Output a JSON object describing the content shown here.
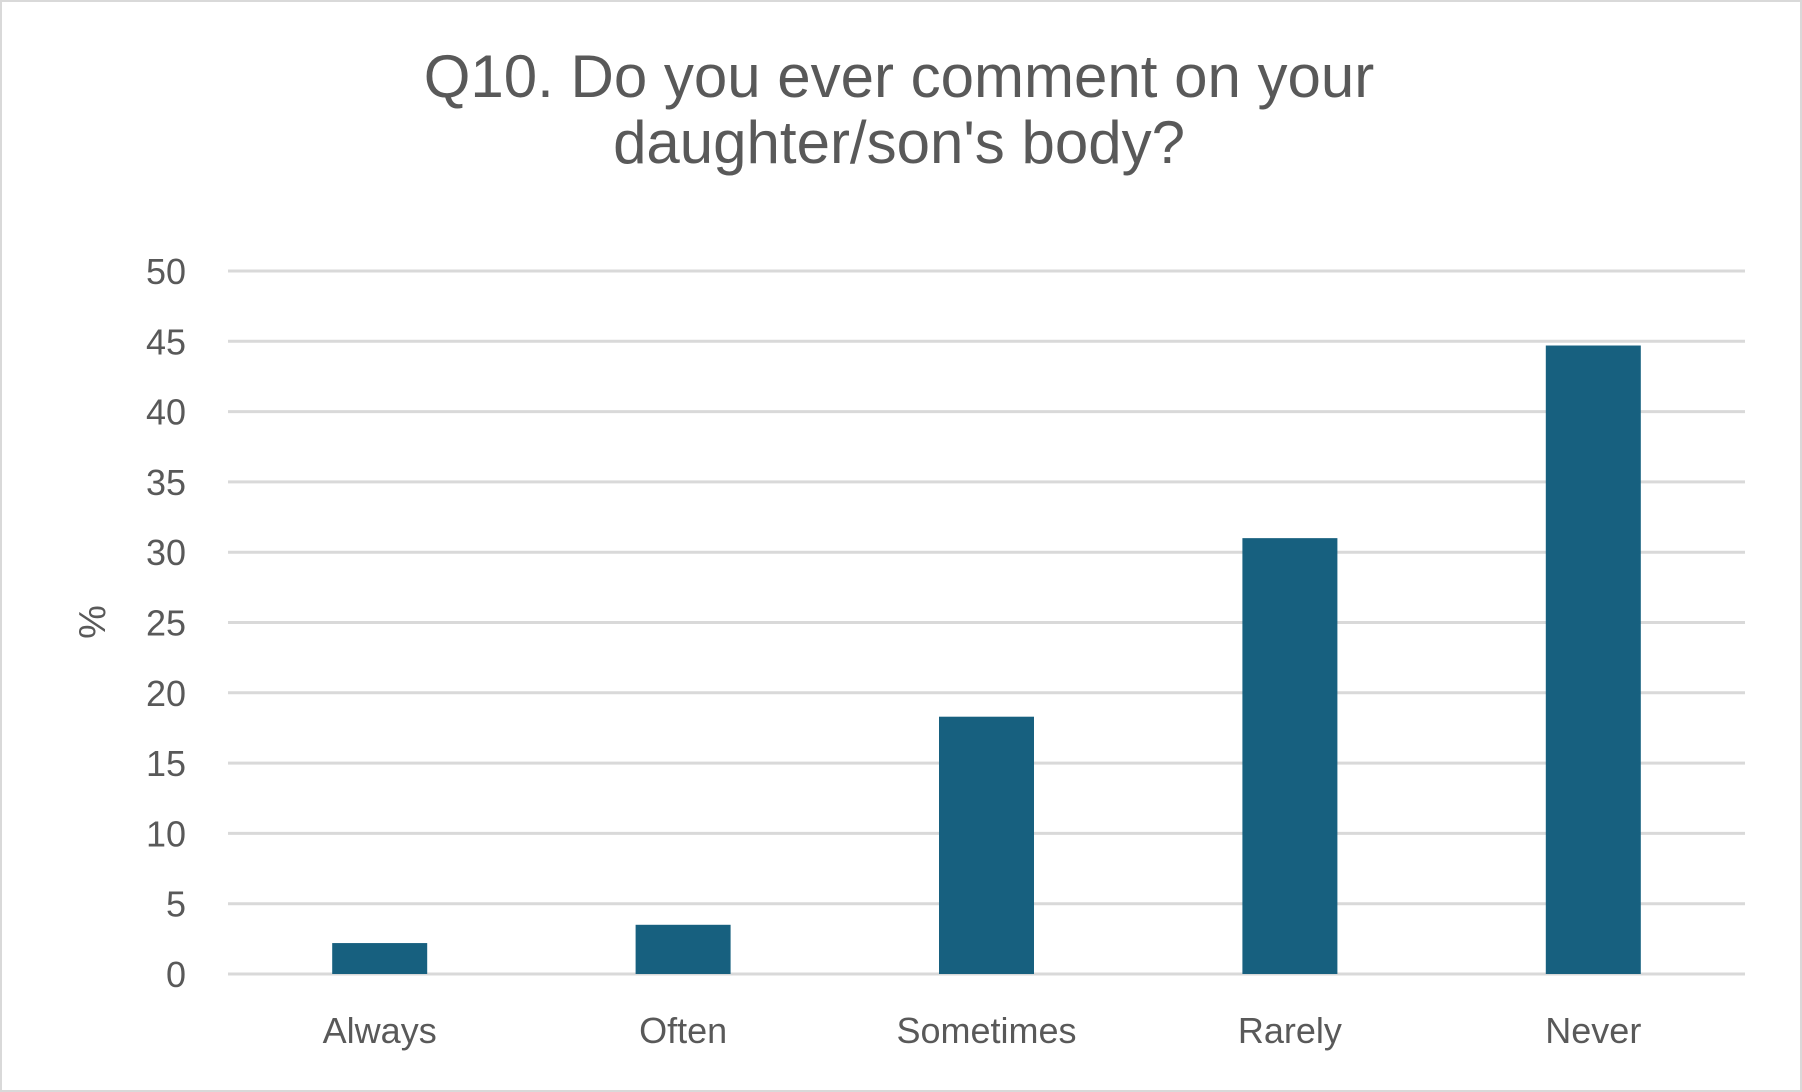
{
  "chart_data": {
    "type": "bar",
    "title_lines": [
      "Q10. Do you ever comment on your",
      "daughter/son's body?"
    ],
    "categories": [
      "Always",
      "Often",
      "Sometimes",
      "Rarely",
      "Never"
    ],
    "values": [
      2.2,
      3.5,
      18.3,
      31.0,
      44.7
    ],
    "xlabel": "",
    "ylabel": "%",
    "ylim": [
      0,
      50
    ],
    "yticks": [
      0,
      5,
      10,
      15,
      20,
      25,
      30,
      35,
      40,
      45,
      50
    ],
    "grid": true,
    "legend": "none",
    "bar_color": "#17607f",
    "grid_color": "#d9d9d9",
    "text_color": "#595959"
  }
}
